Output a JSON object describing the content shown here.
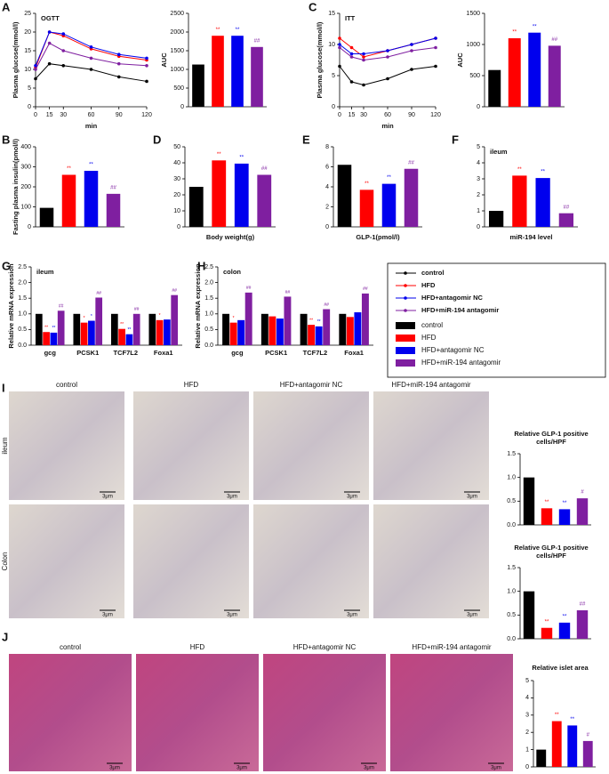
{
  "panels": [
    "A",
    "C",
    "B",
    "D",
    "E",
    "F",
    "G",
    "H",
    "I",
    "J"
  ],
  "legend": {
    "items": [
      {
        "name": "control",
        "color": "#000000"
      },
      {
        "name": "HFD",
        "color": "#ff0000"
      },
      {
        "name": "HFD+antagomir NC",
        "color": "#0000ee"
      },
      {
        "name": "HFD+miR-194 antagomir",
        "color": "#7f1fa0"
      }
    ]
  },
  "images": {
    "columns": [
      "control",
      "HFD",
      "HFD+antagomir NC",
      "HFD+miR-194 antagomir"
    ],
    "I_rows": [
      "ileum",
      "Colon"
    ],
    "scale_bar": "3μm"
  },
  "chart_data": [
    {
      "type": "line",
      "title": "OGTT",
      "y_label": "Plasma glucose(mmol/l)",
      "x_label": "min",
      "x": [
        0,
        15,
        30,
        60,
        90,
        120
      ],
      "xlim": [
        0,
        120
      ],
      "xticks": [
        0,
        15,
        30,
        60,
        90,
        120
      ],
      "ylim": [
        0,
        25
      ],
      "yticks": [
        0,
        5,
        10,
        15,
        20,
        25
      ],
      "series": [
        {
          "color": "#000000",
          "values": [
            7.5,
            11.5,
            11,
            10,
            8,
            6.8
          ]
        },
        {
          "color": "#ff0000",
          "values": [
            10.5,
            20,
            19,
            15.5,
            13.5,
            12.5
          ]
        },
        {
          "color": "#0000ee",
          "values": [
            11,
            20,
            19.5,
            16,
            14,
            13
          ]
        },
        {
          "color": "#7f1fa0",
          "values": [
            10,
            17,
            15,
            13,
            11.5,
            11
          ]
        }
      ]
    },
    {
      "type": "bar",
      "y_label": "AUC",
      "ylim": [
        0,
        2500
      ],
      "yticks": [
        0,
        500,
        1000,
        1500,
        2000,
        2500
      ],
      "values": [
        1130,
        1900,
        1900,
        1600
      ],
      "colors": [
        "#000000",
        "#ff0000",
        "#0000ee",
        "#7f1fa0"
      ],
      "annotations": [
        null,
        "**",
        "**",
        "##"
      ]
    },
    {
      "type": "line",
      "title": "ITT",
      "y_label": "Plasma glucose(mmol/l)",
      "x_label": "min",
      "x": [
        0,
        15,
        30,
        60,
        90,
        120
      ],
      "xlim": [
        0,
        120
      ],
      "xticks": [
        0,
        15,
        30,
        60,
        90,
        120
      ],
      "ylim": [
        0,
        15
      ],
      "yticks": [
        0,
        5,
        10,
        15
      ],
      "series": [
        {
          "color": "#000000",
          "values": [
            6.5,
            4,
            3.5,
            4.5,
            6,
            6.5
          ]
        },
        {
          "color": "#ff0000",
          "values": [
            11,
            9.5,
            8,
            9,
            10,
            11
          ]
        },
        {
          "color": "#0000ee",
          "values": [
            10,
            8.5,
            8.5,
            9,
            10,
            11
          ]
        },
        {
          "color": "#7f1fa0",
          "values": [
            9.5,
            8,
            7.5,
            8,
            9,
            9.5
          ]
        }
      ]
    },
    {
      "type": "bar",
      "y_label": "AUC",
      "ylim": [
        0,
        1500
      ],
      "yticks": [
        0,
        500,
        1000,
        1500
      ],
      "values": [
        590,
        1100,
        1190,
        980
      ],
      "colors": [
        "#000000",
        "#ff0000",
        "#0000ee",
        "#7f1fa0"
      ],
      "annotations": [
        null,
        "**",
        "**",
        "##"
      ]
    },
    {
      "type": "bar",
      "y_label": "Fasting plasma insulin(pmol/l)",
      "ylim": [
        0,
        400
      ],
      "yticks": [
        0,
        100,
        200,
        300,
        400
      ],
      "values": [
        95,
        260,
        280,
        165
      ],
      "colors": [
        "#000000",
        "#ff0000",
        "#0000ee",
        "#7f1fa0"
      ],
      "annotations": [
        null,
        "**",
        "**",
        "##"
      ]
    },
    {
      "type": "bar",
      "x_label": "Body weight(g)",
      "ylim": [
        0,
        50
      ],
      "yticks": [
        0,
        10,
        20,
        30,
        40,
        50
      ],
      "values": [
        25,
        41.5,
        39.5,
        32.5
      ],
      "colors": [
        "#000000",
        "#ff0000",
        "#0000ee",
        "#7f1fa0"
      ],
      "annotations": [
        null,
        "**",
        "**",
        "##"
      ]
    },
    {
      "type": "bar",
      "x_label": "GLP-1(pmol/l)",
      "ylim": [
        0,
        8
      ],
      "yticks": [
        0,
        2,
        4,
        6,
        8
      ],
      "values": [
        6.2,
        3.7,
        4.3,
        5.8
      ],
      "colors": [
        "#000000",
        "#ff0000",
        "#0000ee",
        "#7f1fa0"
      ],
      "annotations": [
        null,
        "**",
        "**",
        "##"
      ]
    },
    {
      "type": "bar",
      "title": "ileum",
      "x_label": "miR-194 level",
      "ylim": [
        0,
        5
      ],
      "yticks": [
        0,
        1,
        2,
        3,
        4,
        5
      ],
      "values": [
        1,
        3.2,
        3.05,
        0.85
      ],
      "colors": [
        "#000000",
        "#ff0000",
        "#0000ee",
        "#7f1fa0"
      ],
      "annotations": [
        null,
        "**",
        "**",
        "##"
      ]
    },
    {
      "type": "grouped_bar",
      "title": "ileum",
      "y_label": "Relative mRNA expression",
      "categories": [
        "gcg",
        "PCSK1",
        "TCF7L2",
        "Foxa1"
      ],
      "ylim": [
        0,
        2.5
      ],
      "yticks": [
        {
          "value": 0,
          "label": "0.0"
        },
        {
          "value": 0.5,
          "label": "0.5"
        },
        {
          "value": 1,
          "label": "1.0"
        },
        {
          "value": 1.5,
          "label": "1.5"
        },
        {
          "value": 2,
          "label": "2.0"
        },
        {
          "value": 2.5,
          "label": "2.5"
        }
      ],
      "series": [
        {
          "color": "#000000",
          "values": [
            1,
            1,
            1,
            1
          ],
          "annotations": [
            null,
            null,
            null,
            null
          ]
        },
        {
          "color": "#ff0000",
          "values": [
            0.42,
            0.72,
            0.52,
            0.8
          ],
          "annotations": [
            "**",
            "*",
            "**",
            "*"
          ]
        },
        {
          "color": "#0000ee",
          "values": [
            0.4,
            0.78,
            0.35,
            0.82
          ],
          "annotations": [
            "**",
            "*",
            "**",
            null
          ]
        },
        {
          "color": "#7f1fa0",
          "values": [
            1.1,
            1.52,
            1.0,
            1.6
          ],
          "annotations": [
            "##",
            "##",
            "##",
            "##"
          ]
        }
      ]
    },
    {
      "type": "grouped_bar",
      "title": "colon",
      "y_label": "Relative mRNA expression",
      "categories": [
        "gcg",
        "PCSK1",
        "TCF7L2",
        "Foxa1"
      ],
      "ylim": [
        0,
        2.5
      ],
      "yticks": [
        {
          "value": 0,
          "label": "0.0"
        },
        {
          "value": 0.5,
          "label": "0.5"
        },
        {
          "value": 1,
          "label": "1.0"
        },
        {
          "value": 1.5,
          "label": "1.5"
        },
        {
          "value": 2,
          "label": "2.0"
        },
        {
          "value": 2.5,
          "label": "2.5"
        }
      ],
      "series": [
        {
          "color": "#000000",
          "values": [
            1,
            1,
            1,
            1
          ],
          "annotations": [
            null,
            null,
            null,
            null
          ]
        },
        {
          "color": "#ff0000",
          "values": [
            0.72,
            0.92,
            0.65,
            0.9
          ],
          "annotations": [
            "*",
            null,
            "**",
            null
          ]
        },
        {
          "color": "#0000ee",
          "values": [
            0.8,
            0.85,
            0.6,
            1.05
          ],
          "annotations": [
            null,
            null,
            "**",
            null
          ]
        },
        {
          "color": "#7f1fa0",
          "values": [
            1.68,
            1.55,
            1.15,
            1.65
          ],
          "annotations": [
            "##",
            "##",
            "##",
            "##"
          ]
        }
      ]
    },
    {
      "type": "bar",
      "title_lines": [
        "Relative GLP-1 positive",
        "cells/HPF"
      ],
      "ylim": [
        0,
        1.5
      ],
      "yticks": [
        {
          "value": 0,
          "label": "0.0"
        },
        {
          "value": 0.5,
          "label": "0.5"
        },
        {
          "value": 1,
          "label": "1.0"
        },
        {
          "value": 1.5,
          "label": "1.5"
        }
      ],
      "values": [
        1.0,
        0.35,
        0.33,
        0.56
      ],
      "colors": [
        "#000000",
        "#ff0000",
        "#0000ee",
        "#7f1fa0"
      ],
      "annotations": [
        null,
        "**",
        "**",
        "#"
      ]
    },
    {
      "type": "bar",
      "title_lines": [
        "Relative GLP-1 positive",
        "cells/HPF"
      ],
      "ylim": [
        0,
        1.5
      ],
      "yticks": [
        {
          "value": 0,
          "label": "0.0"
        },
        {
          "value": 0.5,
          "label": "0.5"
        },
        {
          "value": 1,
          "label": "1.0"
        },
        {
          "value": 1.5,
          "label": "1.5"
        }
      ],
      "values": [
        1.0,
        0.23,
        0.34,
        0.6
      ],
      "colors": [
        "#000000",
        "#ff0000",
        "#0000ee",
        "#7f1fa0"
      ],
      "annotations": [
        null,
        "**",
        "**",
        "##"
      ]
    },
    {
      "type": "bar",
      "title_lines": [
        "Relative islet area"
      ],
      "ylim": [
        0,
        5
      ],
      "yticks": [
        0,
        1,
        2,
        3,
        4,
        5
      ],
      "values": [
        1.0,
        2.65,
        2.4,
        1.5
      ],
      "colors": [
        "#000000",
        "#ff0000",
        "#0000ee",
        "#7f1fa0"
      ],
      "annotations": [
        null,
        "**",
        "**",
        "#"
      ]
    }
  ]
}
